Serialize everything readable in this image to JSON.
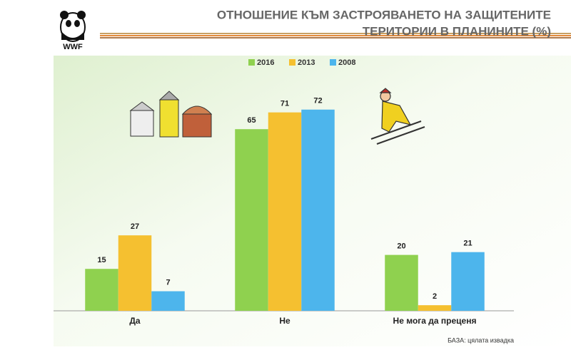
{
  "logo": "WWF",
  "chart_data": {
    "type": "bar",
    "title": [
      "ОТНОШЕНИЕ КЪМ ЗАСТРОЯВАНЕТО НА ЗАЩИТЕНИТЕ",
      "ТЕРИТОРИИ В ПЛАНИНИТЕ (%)"
    ],
    "categories": [
      "Да",
      "Не",
      "Не мога да преценя"
    ],
    "series": [
      {
        "name": "2016",
        "color": "#8fd14f",
        "values": [
          15,
          65,
          20
        ]
      },
      {
        "name": "2013",
        "color": "#f5c030",
        "values": [
          27,
          71,
          2
        ]
      },
      {
        "name": "2008",
        "color": "#4db5ec",
        "values": [
          7,
          72,
          21
        ]
      }
    ],
    "note": "БАЗА: цялата извадка"
  }
}
